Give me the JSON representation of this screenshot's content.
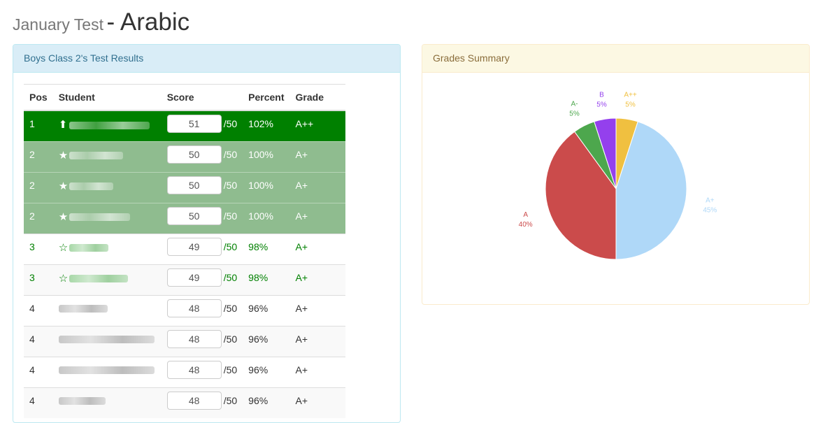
{
  "page": {
    "title_prefix": "January Test",
    "title_main": "- Arabic"
  },
  "results": {
    "heading": "Boys Class 2's Test Results",
    "columns": [
      "Pos",
      "Student",
      "Score",
      "Percent",
      "Grade"
    ],
    "out_of": "/50",
    "rows": [
      {
        "pos": "1",
        "icon": "up-arrow-icon",
        "glyph": "⬆",
        "score": "51",
        "percent": "102%",
        "grade": "A++",
        "style": "top",
        "name_len": 0.82
      },
      {
        "pos": "2",
        "icon": "star-filled-icon",
        "glyph": "★",
        "score": "50",
        "percent": "100%",
        "grade": "A+",
        "style": "star",
        "name_len": 0.55
      },
      {
        "pos": "2",
        "icon": "star-filled-icon",
        "glyph": "★",
        "score": "50",
        "percent": "100%",
        "grade": "A+",
        "style": "star",
        "name_len": 0.45
      },
      {
        "pos": "2",
        "icon": "star-filled-icon",
        "glyph": "★",
        "score": "50",
        "percent": "100%",
        "grade": "A+",
        "style": "star",
        "name_len": 0.62
      },
      {
        "pos": "3",
        "icon": "star-outline-icon",
        "glyph": "☆",
        "score": "49",
        "percent": "98%",
        "grade": "A+",
        "style": "green",
        "name_len": 0.4
      },
      {
        "pos": "3",
        "icon": "star-outline-icon",
        "glyph": "☆",
        "score": "49",
        "percent": "98%",
        "grade": "A+",
        "style": "green",
        "name_len": 0.6
      },
      {
        "pos": "4",
        "icon": "",
        "glyph": "",
        "score": "48",
        "percent": "96%",
        "grade": "A+",
        "style": "plain",
        "name_len": 0.5
      },
      {
        "pos": "4",
        "icon": "",
        "glyph": "",
        "score": "48",
        "percent": "96%",
        "grade": "A+",
        "style": "plain",
        "name_len": 0.98
      },
      {
        "pos": "4",
        "icon": "",
        "glyph": "",
        "score": "48",
        "percent": "96%",
        "grade": "A+",
        "style": "plain",
        "name_len": 0.98
      },
      {
        "pos": "4",
        "icon": "",
        "glyph": "",
        "score": "48",
        "percent": "96%",
        "grade": "A+",
        "style": "plain",
        "name_len": 0.48
      }
    ]
  },
  "summary": {
    "heading": "Grades Summary"
  },
  "chart_data": {
    "type": "pie",
    "title": "Grades Summary",
    "slices": [
      {
        "label": "A++",
        "value": 5,
        "pct": "5%",
        "color": "#f0c040"
      },
      {
        "label": "A+",
        "value": 45,
        "pct": "45%",
        "color": "#afd8f8"
      },
      {
        "label": "A",
        "value": 40,
        "pct": "40%",
        "color": "#cb4b4b"
      },
      {
        "label": "A-",
        "value": 5,
        "pct": "5%",
        "color": "#4da74d"
      },
      {
        "label": "B",
        "value": 5,
        "pct": "5%",
        "color": "#9440ed"
      }
    ]
  }
}
